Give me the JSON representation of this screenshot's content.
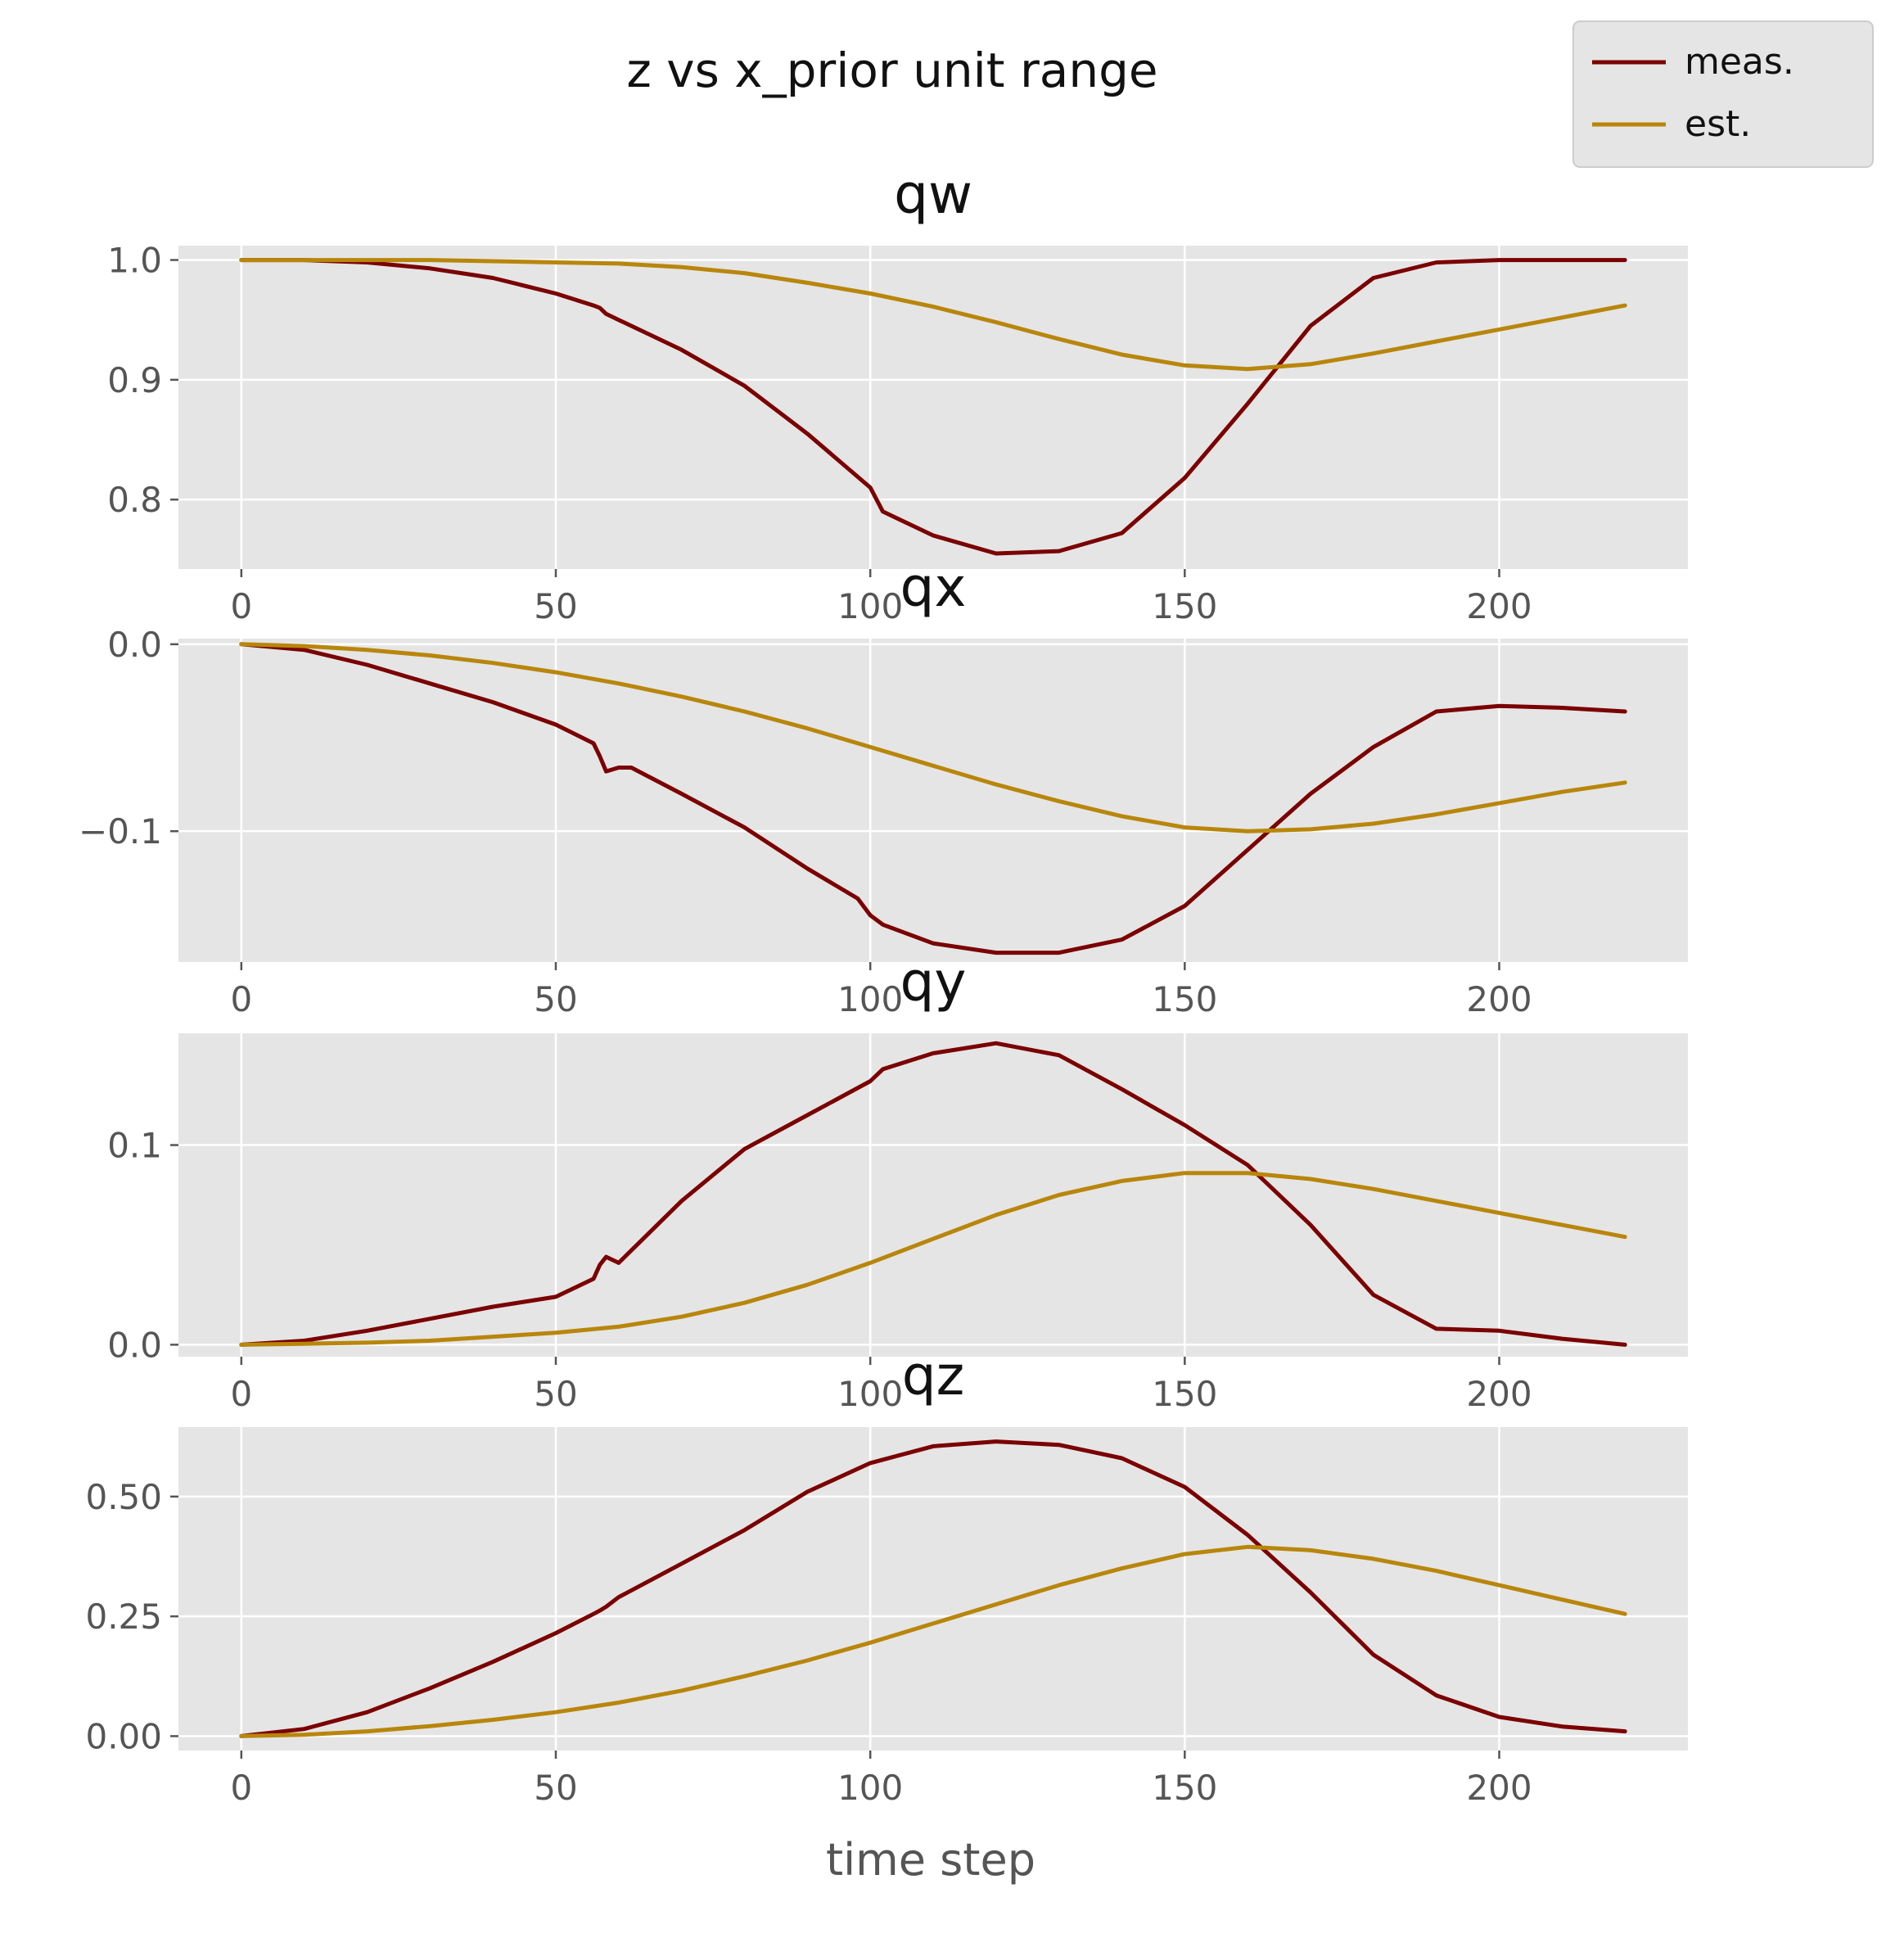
{
  "figure": {
    "title": "z vs x_prior unit range",
    "xlabel": "time step"
  },
  "colors": {
    "meas": "#7b0000",
    "est": "#b8860b",
    "panel_bg": "#e5e5e5",
    "grid": "#ffffff"
  },
  "legend": {
    "placement": "top-right",
    "entries": [
      {
        "label": "meas.",
        "color": "#7b0000"
      },
      {
        "label": "est.",
        "color": "#b8860b"
      }
    ]
  },
  "chart_data": [
    {
      "type": "line",
      "title": "qw",
      "xlim": [
        -10,
        230
      ],
      "ylim": [
        0.742,
        1.012
      ],
      "xticks": [
        0,
        50,
        100,
        150,
        200
      ],
      "xtick_labels": [
        "0",
        "50",
        "100",
        "150",
        "200"
      ],
      "yticks": [
        0.8,
        0.9,
        1.0
      ],
      "ytick_labels": [
        "0.8",
        "0.9",
        "1.0"
      ],
      "series": [
        {
          "name": "meas.",
          "x": [
            0,
            10,
            20,
            30,
            40,
            50,
            56,
            57,
            58,
            60,
            70,
            80,
            90,
            100,
            102,
            110,
            120,
            130,
            140,
            150,
            160,
            170,
            180,
            190,
            200,
            210,
            220
          ],
          "y": [
            1.0,
            1.0,
            0.998,
            0.993,
            0.985,
            0.972,
            0.962,
            0.96,
            0.955,
            0.95,
            0.925,
            0.895,
            0.855,
            0.81,
            0.79,
            0.77,
            0.755,
            0.757,
            0.772,
            0.818,
            0.88,
            0.945,
            0.985,
            0.998,
            1.0,
            1.0,
            1.0
          ]
        },
        {
          "name": "est.",
          "x": [
            0,
            10,
            20,
            30,
            40,
            50,
            60,
            70,
            80,
            90,
            100,
            110,
            120,
            130,
            140,
            150,
            160,
            170,
            180,
            190,
            200,
            210,
            220
          ],
          "y": [
            1.0,
            1.0,
            1.0,
            1.0,
            0.999,
            0.998,
            0.997,
            0.994,
            0.989,
            0.981,
            0.972,
            0.961,
            0.948,
            0.934,
            0.921,
            0.912,
            0.909,
            0.913,
            0.922,
            0.932,
            0.942,
            0.952,
            0.962
          ]
        }
      ]
    },
    {
      "type": "line",
      "title": "qx",
      "xlim": [
        -10,
        230
      ],
      "ylim": [
        -0.17,
        0.003
      ],
      "xticks": [
        0,
        50,
        100,
        150,
        200
      ],
      "xtick_labels": [
        "0",
        "50",
        "100",
        "150",
        "200"
      ],
      "yticks": [
        -0.1,
        0.0
      ],
      "ytick_labels": [
        "−0.1",
        "0.0"
      ],
      "series": [
        {
          "name": "meas.",
          "x": [
            0,
            10,
            20,
            30,
            40,
            50,
            56,
            57,
            58,
            60,
            62,
            70,
            80,
            90,
            98,
            100,
            102,
            110,
            120,
            130,
            140,
            150,
            160,
            170,
            180,
            190,
            200,
            210,
            220
          ],
          "y": [
            0.0,
            -0.003,
            -0.011,
            -0.021,
            -0.031,
            -0.043,
            -0.053,
            -0.06,
            -0.068,
            -0.066,
            -0.066,
            -0.08,
            -0.098,
            -0.12,
            -0.136,
            -0.145,
            -0.15,
            -0.16,
            -0.165,
            -0.165,
            -0.158,
            -0.14,
            -0.11,
            -0.08,
            -0.055,
            -0.036,
            -0.033,
            -0.034,
            -0.036
          ]
        },
        {
          "name": "est.",
          "x": [
            0,
            10,
            20,
            30,
            40,
            50,
            60,
            70,
            80,
            90,
            100,
            110,
            120,
            130,
            140,
            150,
            160,
            170,
            180,
            190,
            200,
            210,
            220
          ],
          "y": [
            0.0,
            -0.001,
            -0.003,
            -0.006,
            -0.01,
            -0.015,
            -0.021,
            -0.028,
            -0.036,
            -0.045,
            -0.055,
            -0.065,
            -0.075,
            -0.084,
            -0.092,
            -0.098,
            -0.1,
            -0.099,
            -0.096,
            -0.091,
            -0.085,
            -0.079,
            -0.074
          ]
        }
      ]
    },
    {
      "type": "line",
      "title": "qy",
      "xlim": [
        -10,
        230
      ],
      "ylim": [
        -0.006,
        0.156
      ],
      "xticks": [
        0,
        50,
        100,
        150,
        200
      ],
      "xtick_labels": [
        "0",
        "50",
        "100",
        "150",
        "200"
      ],
      "yticks": [
        0.0,
        0.1
      ],
      "ytick_labels": [
        "0.0",
        "0.1"
      ],
      "series": [
        {
          "name": "meas.",
          "x": [
            0,
            10,
            20,
            30,
            40,
            50,
            56,
            57,
            58,
            60,
            70,
            80,
            90,
            100,
            102,
            110,
            120,
            130,
            140,
            150,
            160,
            170,
            180,
            190,
            200,
            210,
            220
          ],
          "y": [
            0.0,
            0.002,
            0.007,
            0.013,
            0.019,
            0.024,
            0.033,
            0.04,
            0.044,
            0.041,
            0.072,
            0.098,
            0.115,
            0.132,
            0.138,
            0.146,
            0.151,
            0.145,
            0.128,
            0.11,
            0.09,
            0.06,
            0.025,
            0.008,
            0.007,
            0.003,
            0.0
          ]
        },
        {
          "name": "est.",
          "x": [
            0,
            10,
            20,
            30,
            40,
            50,
            60,
            70,
            80,
            90,
            100,
            110,
            120,
            130,
            140,
            150,
            160,
            170,
            180,
            190,
            200,
            210,
            220
          ],
          "y": [
            0.0,
            0.0005,
            0.001,
            0.002,
            0.004,
            0.006,
            0.009,
            0.014,
            0.021,
            0.03,
            0.041,
            0.053,
            0.065,
            0.075,
            0.082,
            0.086,
            0.086,
            0.083,
            0.078,
            0.072,
            0.066,
            0.06,
            0.054
          ]
        }
      ]
    },
    {
      "type": "line",
      "title": "qz",
      "xlim": [
        -10,
        230
      ],
      "ylim": [
        -0.03,
        0.645
      ],
      "xticks": [
        0,
        50,
        100,
        150,
        200
      ],
      "xtick_labels": [
        "0",
        "50",
        "100",
        "150",
        "200"
      ],
      "yticks": [
        0.0,
        0.25,
        0.5
      ],
      "ytick_labels": [
        "0.00",
        "0.25",
        "0.50"
      ],
      "series": [
        {
          "name": "meas.",
          "x": [
            0,
            10,
            20,
            30,
            40,
            50,
            56,
            57,
            58,
            60,
            70,
            80,
            90,
            100,
            110,
            120,
            130,
            140,
            150,
            160,
            170,
            180,
            190,
            200,
            210,
            220
          ],
          "y": [
            0.0,
            0.015,
            0.05,
            0.1,
            0.155,
            0.215,
            0.255,
            0.262,
            0.27,
            0.29,
            0.36,
            0.43,
            0.51,
            0.57,
            0.605,
            0.615,
            0.608,
            0.58,
            0.52,
            0.42,
            0.3,
            0.17,
            0.085,
            0.04,
            0.02,
            0.01
          ]
        },
        {
          "name": "est.",
          "x": [
            0,
            10,
            20,
            30,
            40,
            50,
            60,
            70,
            80,
            90,
            100,
            110,
            120,
            130,
            140,
            150,
            160,
            170,
            180,
            190,
            200,
            210,
            220
          ],
          "y": [
            0.0,
            0.003,
            0.01,
            0.021,
            0.034,
            0.05,
            0.07,
            0.095,
            0.125,
            0.158,
            0.195,
            0.235,
            0.275,
            0.315,
            0.35,
            0.38,
            0.395,
            0.388,
            0.37,
            0.345,
            0.315,
            0.285,
            0.255
          ]
        }
      ]
    }
  ]
}
